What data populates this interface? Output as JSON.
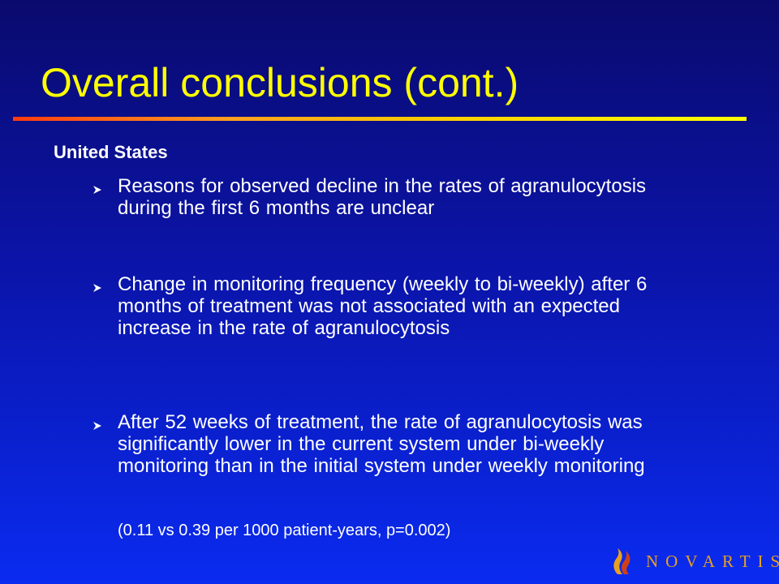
{
  "slide": {
    "title": "Overall conclusions (cont.)",
    "section_heading": "United States",
    "bullets": [
      "Reasons for observed decline in the rates of agranulocytosis during the first 6 months are unclear",
      "Change in monitoring frequency (weekly to bi-weekly) after 6 months of treatment was not associated with an expected increase in the rate of agranulocytosis",
      "After 52 weeks of treatment, the rate of agranulocytosis was significantly lower in the current system under bi-weekly monitoring than in the initial system under weekly monitoring"
    ],
    "stats_note": "(0.11 vs 0.39 per 1000 patient-years, p=0.002)"
  },
  "logo": {
    "text": "NOVARTIS",
    "icon": "novartis-flame-icon",
    "color": "#e8a020"
  },
  "colors": {
    "title": "#ffff00",
    "body_text": "#ffffff",
    "background_top": "#0a0a6e",
    "background_bottom": "#0a2bf0"
  },
  "icons": {
    "bullet": "arrowhead-bullet-icon"
  }
}
